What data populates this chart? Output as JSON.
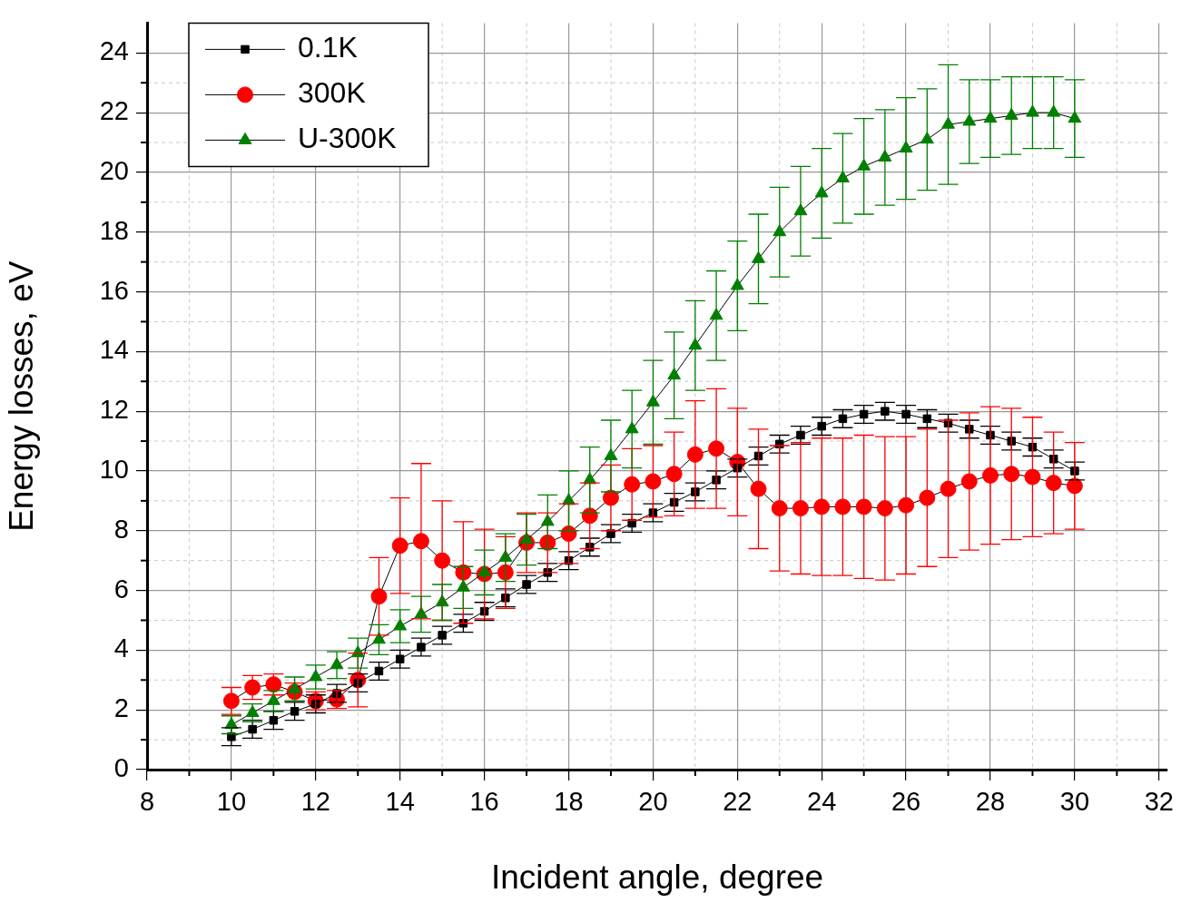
{
  "chart_data": {
    "type": "line",
    "xlabel": "Incident angle, degree",
    "ylabel": "Energy losses, eV",
    "x": [
      10,
      10.5,
      11,
      11.5,
      12,
      12.5,
      13,
      13.5,
      14,
      14.5,
      15,
      15.5,
      16,
      16.5,
      17,
      17.5,
      18,
      18.5,
      19,
      19.5,
      20,
      20.5,
      21,
      21.5,
      22,
      22.5,
      23,
      23.5,
      24,
      24.5,
      25,
      25.5,
      26,
      26.5,
      27,
      27.5,
      28,
      28.5,
      29,
      29.5,
      30
    ],
    "series": [
      {
        "name": "0.1K",
        "color": "#000000",
        "marker": "square",
        "values": [
          1.1,
          1.35,
          1.65,
          1.95,
          2.2,
          2.55,
          2.9,
          3.3,
          3.7,
          4.1,
          4.5,
          4.9,
          5.3,
          5.75,
          6.2,
          6.6,
          7.0,
          7.45,
          7.9,
          8.25,
          8.6,
          8.95,
          9.3,
          9.7,
          10.1,
          10.5,
          10.9,
          11.2,
          11.5,
          11.75,
          11.9,
          12.0,
          11.9,
          11.75,
          11.6,
          11.4,
          11.2,
          11.0,
          10.8,
          10.4,
          10.0
        ],
        "errors": [
          0.3,
          0.3,
          0.3,
          0.3,
          0.3,
          0.3,
          0.3,
          0.3,
          0.3,
          0.3,
          0.3,
          0.3,
          0.3,
          0.3,
          0.3,
          0.3,
          0.3,
          0.3,
          0.3,
          0.3,
          0.3,
          0.3,
          0.3,
          0.3,
          0.3,
          0.3,
          0.3,
          0.3,
          0.3,
          0.3,
          0.3,
          0.3,
          0.3,
          0.3,
          0.3,
          0.3,
          0.3,
          0.3,
          0.3,
          0.3,
          0.3
        ]
      },
      {
        "name": "300K",
        "color": "#ff0000",
        "marker": "circle",
        "values": [
          2.3,
          2.75,
          2.85,
          2.6,
          2.3,
          2.35,
          3.0,
          5.8,
          7.5,
          7.65,
          7.0,
          6.6,
          6.55,
          6.6,
          7.6,
          7.6,
          7.9,
          8.5,
          9.1,
          9.55,
          9.65,
          9.9,
          10.55,
          10.75,
          10.3,
          9.4,
          8.75,
          8.75,
          8.8,
          8.8,
          8.8,
          8.75,
          8.85,
          9.1,
          9.4,
          9.65,
          9.85,
          9.9,
          9.8,
          9.6,
          9.5
        ],
        "errors": [
          0.45,
          0.4,
          0.35,
          0.3,
          0.3,
          0.3,
          0.9,
          1.3,
          1.6,
          2.6,
          2.0,
          1.7,
          1.5,
          1.2,
          1.0,
          1.0,
          1.0,
          1.1,
          1.1,
          1.2,
          1.2,
          1.4,
          1.8,
          2.0,
          1.8,
          2.0,
          2.1,
          2.2,
          2.3,
          2.3,
          2.4,
          2.4,
          2.3,
          2.3,
          2.3,
          2.3,
          2.3,
          2.2,
          2.0,
          1.7,
          1.45
        ]
      },
      {
        "name": "U-300K",
        "color": "#008000",
        "marker": "triangle",
        "values": [
          1.5,
          1.9,
          2.3,
          2.7,
          3.1,
          3.5,
          3.9,
          4.35,
          4.8,
          5.2,
          5.6,
          6.1,
          6.6,
          7.1,
          7.7,
          8.3,
          9.0,
          9.7,
          10.5,
          11.4,
          12.3,
          13.2,
          14.2,
          15.2,
          16.2,
          17.1,
          18.0,
          18.7,
          19.3,
          19.8,
          20.2,
          20.5,
          20.8,
          21.1,
          21.6,
          21.7,
          21.8,
          21.9,
          22.0,
          22.0,
          21.8
        ],
        "errors": [
          0.3,
          0.3,
          0.35,
          0.4,
          0.4,
          0.45,
          0.5,
          0.5,
          0.55,
          0.6,
          0.6,
          0.7,
          0.75,
          0.8,
          0.85,
          0.9,
          1.0,
          1.1,
          1.2,
          1.3,
          1.4,
          1.45,
          1.5,
          1.5,
          1.5,
          1.5,
          1.5,
          1.5,
          1.5,
          1.5,
          1.6,
          1.6,
          1.7,
          1.7,
          2.0,
          1.4,
          1.3,
          1.3,
          1.2,
          1.2,
          1.3
        ]
      }
    ],
    "xlim": [
      8,
      32.2
    ],
    "xticks": [
      8,
      10,
      12,
      14,
      16,
      18,
      20,
      22,
      24,
      26,
      28,
      30,
      32
    ],
    "ylim": [
      0,
      25
    ],
    "yticks": [
      0,
      2,
      4,
      6,
      8,
      10,
      12,
      14,
      16,
      18,
      20,
      22,
      24
    ],
    "grid": true,
    "legend": "top left",
    "line_style": "solid"
  }
}
